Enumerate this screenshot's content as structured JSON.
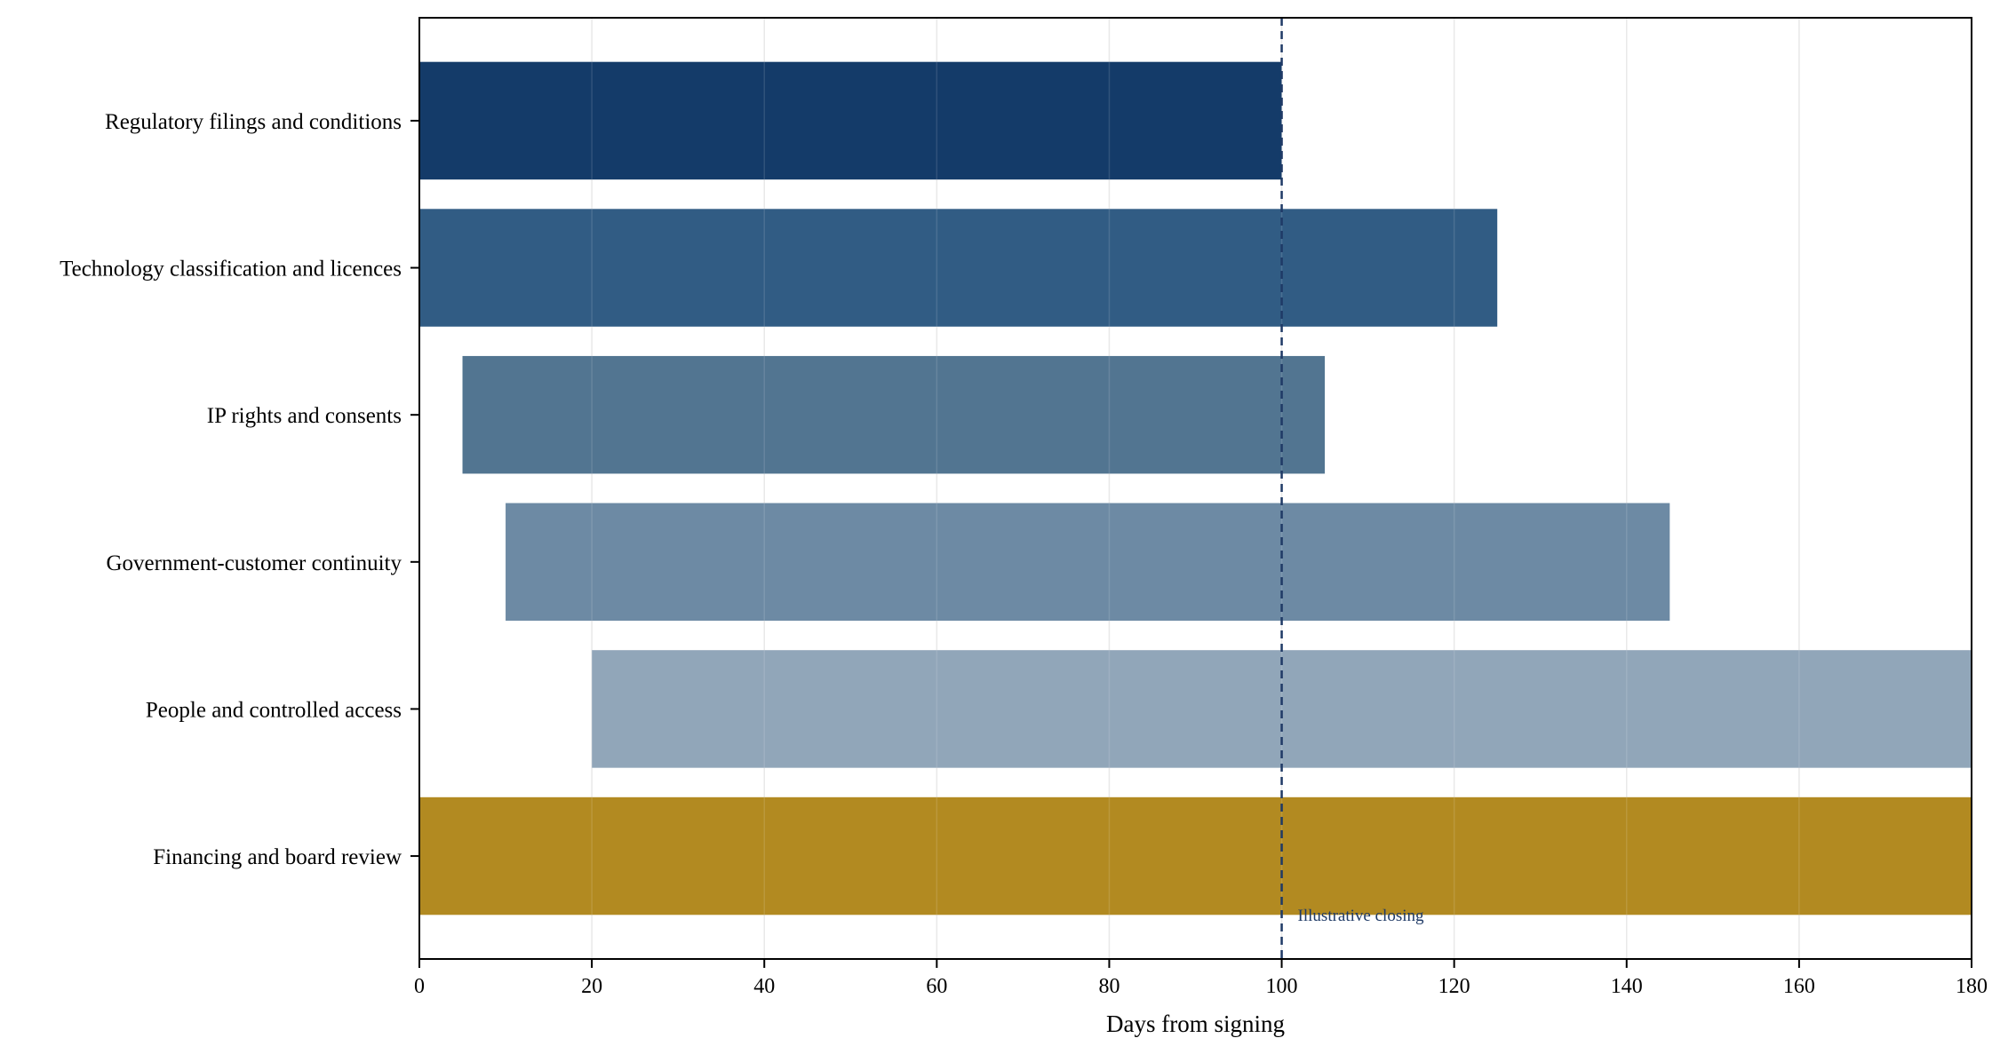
{
  "chart_data": {
    "type": "bar",
    "orientation": "horizontal",
    "title": "",
    "xlabel": "Days from signing",
    "ylabel": "",
    "xlim": [
      0,
      180
    ],
    "xticks": [
      0,
      20,
      40,
      60,
      80,
      100,
      120,
      140,
      160,
      180
    ],
    "grid": "vertical",
    "categories": [
      "Regulatory filings and conditions",
      "Technology classification and licences",
      "IP rights and consents",
      "Government-customer continuity",
      "People and controlled access",
      "Financing and board review"
    ],
    "bars": [
      {
        "label": "Regulatory filings and conditions",
        "start": 0,
        "end": 100,
        "color": "#143B69"
      },
      {
        "label": "Technology classification and licences",
        "start": 0,
        "end": 125,
        "color": "#315C84"
      },
      {
        "label": "IP rights and consents",
        "start": 5,
        "end": 105,
        "color": "#527591"
      },
      {
        "label": "Government-customer continuity",
        "start": 10,
        "end": 145,
        "color": "#6D8AA4"
      },
      {
        "label": "People and controlled access",
        "start": 20,
        "end": 180,
        "color": "#91A6B9"
      },
      {
        "label": "Financing and board review",
        "start": 0,
        "end": 180,
        "color": "#B28A21"
      }
    ],
    "reference_line": {
      "x": 100,
      "label": "Illustrative closing",
      "color": "#1F3A66"
    }
  }
}
